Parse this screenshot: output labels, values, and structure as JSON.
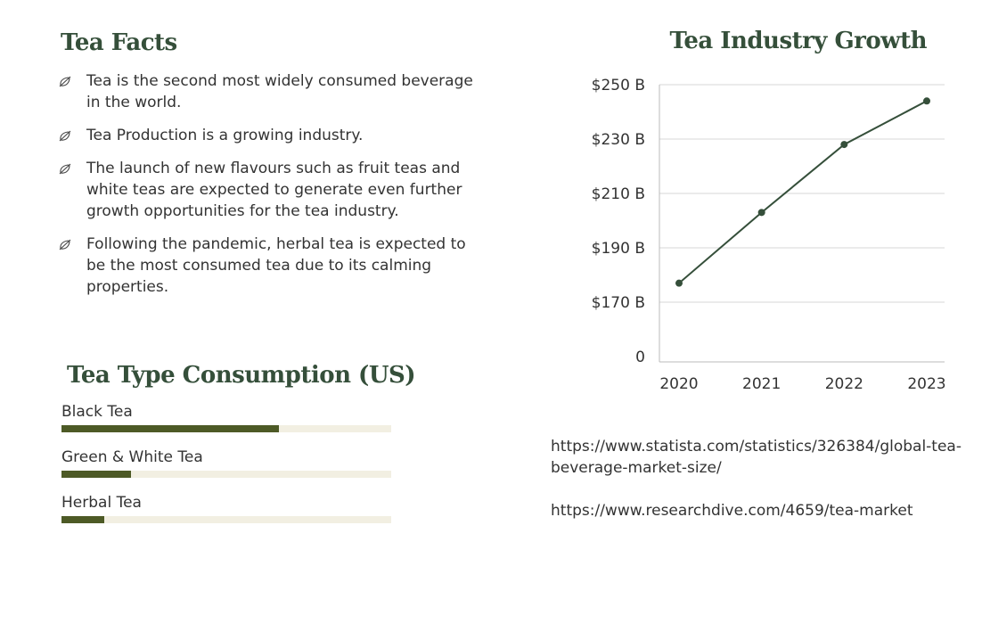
{
  "facts": {
    "title": "Tea Facts",
    "icon": "leaf-icon",
    "items": [
      "Tea is the second most widely consumed beverage in the world.",
      "Tea Production is a growing industry.",
      "The launch of new flavours such as fruit teas and white teas are expected to generate even further growth opportunities for the tea industry.",
      "Following the pandemic, herbal tea is expected to be the most consumed tea due to its calming properties."
    ]
  },
  "consumption": {
    "title": "Tea Type Consumption (US)",
    "colors": {
      "fill": "#4d5a26",
      "track": "#f2efe2"
    },
    "items": [
      {
        "label": "Black Tea",
        "percent": 66
      },
      {
        "label": "Green & White Tea",
        "percent": 21
      },
      {
        "label": "Herbal Tea",
        "percent": 13
      }
    ]
  },
  "chart_data": {
    "type": "line",
    "title": "Tea Industry Growth",
    "categories": [
      "2020",
      "2021",
      "2022",
      "2023"
    ],
    "values": [
      177,
      203,
      228,
      244
    ],
    "yticks": [
      "0",
      "$170 B",
      "$190 B",
      "$210 B",
      "$230 B",
      "$250 B"
    ],
    "ytick_values": [
      0,
      170,
      190,
      210,
      230,
      250
    ],
    "grid": true,
    "color": "#354f3a"
  },
  "sources": [
    "https://www.statista.com/statistics/326384/global-tea-beverage-market-size/",
    "https://www.researchdive.com/4659/tea-market"
  ]
}
